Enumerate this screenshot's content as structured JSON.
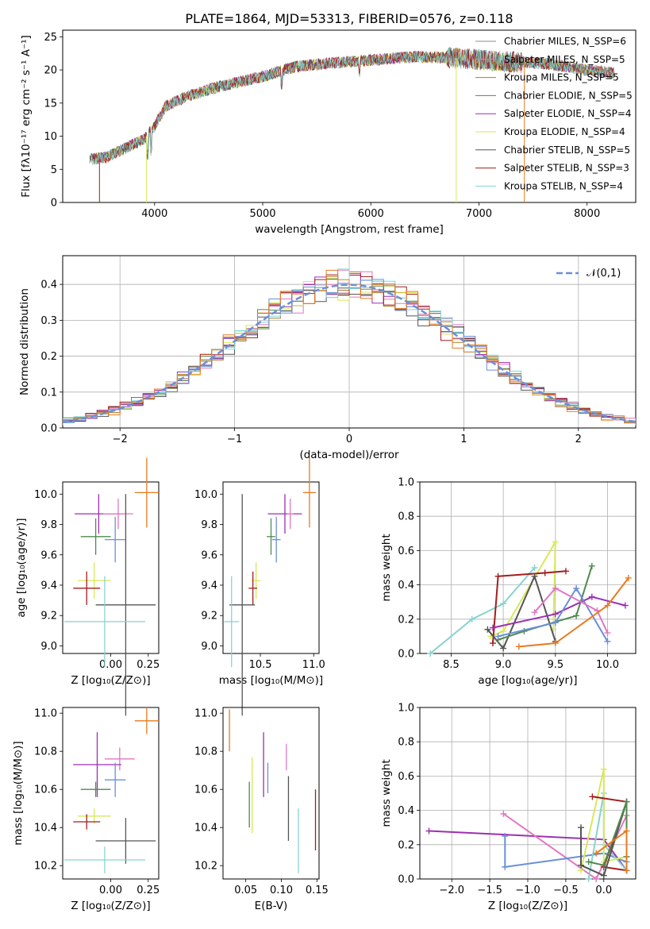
{
  "figure": {
    "title": "PLATE=1864, MJD=53313, FIBERID=0576, z=0.118"
  },
  "colors": {
    "chabrier_miles": "#8c8c8c",
    "salpeter_miles": "#e377c2",
    "kroupa_miles": "#b5782a",
    "chabrier_elodie": "#4f8a4f",
    "salpeter_elodie": "#9d2fb0",
    "kroupa_elodie": "#d7e85b",
    "chabrier_stelib": "#555555",
    "salpeter_stelib": "#a31d1d",
    "kroupa_stelib": "#7fd6d6",
    "orange": "#e87a1e",
    "blue": "#6a8fd8",
    "teal": "#86d3cf"
  },
  "chart_data": [
    {
      "id": "spectrum",
      "type": "line",
      "xlabel": "wavelength [Angstrom, rest frame]",
      "ylabel": "Flux [fλ10⁻¹⁷ erg cm⁻² s⁻¹ A⁻¹]",
      "xlim": [
        3150,
        8450
      ],
      "ylim": [
        0,
        26
      ],
      "xticks": [
        4000,
        5000,
        6000,
        7000,
        8000
      ],
      "yticks": [
        0,
        5,
        10,
        15,
        20,
        25
      ],
      "continuum_x": [
        3400,
        3550,
        3700,
        3900,
        4000,
        4100,
        4300,
        4600,
        5000,
        5300,
        5600,
        6000,
        6400,
        6800,
        7200,
        7600,
        8000,
        8250
      ],
      "continuum_y": [
        6.5,
        6.8,
        8.0,
        9.5,
        11.5,
        14.5,
        16.0,
        17.5,
        19.0,
        20.5,
        21.0,
        21.5,
        22.0,
        21.8,
        21.3,
        21.0,
        20.0,
        19.5
      ],
      "legend": [
        {
          "label": "Chabrier MILES, N_SSP=6",
          "color": "#8c8c8c"
        },
        {
          "label": "Salpeter MILES, N_SSP=5",
          "color": "#e377c2"
        },
        {
          "label": "Kroupa MILES, N_SSP=5",
          "color": "#b5782a"
        },
        {
          "label": "Chabrier ELODIE, N_SSP=5",
          "color": "#4f8a4f"
        },
        {
          "label": "Salpeter ELODIE, N_SSP=4",
          "color": "#9d2fb0"
        },
        {
          "label": "Kroupa ELODIE, N_SSP=4",
          "color": "#d7e85b"
        },
        {
          "label": "Chabrier STELIB, N_SSP=5",
          "color": "#555555"
        },
        {
          "label": "Salpeter STELIB, N_SSP=3",
          "color": "#a31d1d"
        },
        {
          "label": "Kroupa STELIB, N_SSP=4",
          "color": "#7fd6d6"
        }
      ],
      "legend_position": "right",
      "grid": false
    },
    {
      "id": "residuals",
      "type": "line",
      "xlabel": "(data-model)/error",
      "ylabel": "Normed distribution",
      "xlim": [
        -2.5,
        2.5
      ],
      "ylim": [
        0,
        0.48
      ],
      "xticks": [
        -2,
        -1,
        0,
        1,
        2
      ],
      "yticks": [
        0.0,
        0.1,
        0.2,
        0.3,
        0.4
      ],
      "legend": [
        {
          "label": "𝒩(0,1)",
          "color": "#6a8fd8",
          "style": "dashed"
        }
      ],
      "legend_position": "top-right",
      "grid": true,
      "hist_colors": [
        "#b5782a",
        "#e377c2",
        "#4f8a4f",
        "#9d2fb0",
        "#d7e85b",
        "#555555",
        "#a31d1d",
        "#7fd6d6",
        "#6a8fd8",
        "#e87a1e"
      ]
    },
    {
      "id": "age_vs_Z",
      "type": "scatter",
      "xlabel": "Z [log₁₀(Z/Z⊙)]",
      "ylabel": "age  [log₁₀(age/yr)]",
      "xlim": [
        -0.32,
        0.32
      ],
      "ylim": [
        8.95,
        10.08
      ],
      "xticks": [
        0.0,
        0.25
      ],
      "xticklabels": [
        "0.00",
        "0.25"
      ],
      "yticks": [
        9.0,
        9.2,
        9.4,
        9.6,
        9.8,
        10.0
      ],
      "yticklabels": [
        "9.0",
        "9.2",
        "9.4",
        "9.6",
        "9.8",
        "10.0"
      ],
      "points": [
        {
          "x": 0.24,
          "y": 10.01,
          "xerr": 0.08,
          "yerr": 0.23,
          "color": "#e87a1e"
        },
        {
          "x": -0.08,
          "y": 9.87,
          "xerr": 0.16,
          "yerr": 0.13,
          "color": "#9d2fb0"
        },
        {
          "x": 0.05,
          "y": 9.87,
          "xerr": 0.1,
          "yerr": 0.1,
          "color": "#e377c2"
        },
        {
          "x": -0.1,
          "y": 9.72,
          "xerr": 0.1,
          "yerr": 0.12,
          "color": "#4f8a4f"
        },
        {
          "x": 0.03,
          "y": 9.7,
          "xerr": 0.07,
          "yerr": 0.15,
          "color": "#6a8fd8"
        },
        {
          "x": -0.11,
          "y": 9.43,
          "xerr": 0.11,
          "yerr": 0.12,
          "color": "#d7e85b"
        },
        {
          "x": -0.16,
          "y": 9.38,
          "xerr": 0.09,
          "yerr": 0.11,
          "color": "#a31d1d"
        },
        {
          "x": 0.1,
          "y": 9.27,
          "xerr": 0.2,
          "yerr": 0.73,
          "color": "#555555"
        },
        {
          "x": -0.04,
          "y": 9.16,
          "xerr": 0.27,
          "yerr": 0.3,
          "color": "#86d3cf"
        }
      ]
    },
    {
      "id": "age_vs_mass",
      "type": "scatter",
      "xlabel": "mass [log₁₀(M/M⊙)]",
      "ylabel": "",
      "xlim": [
        10.15,
        11.05
      ],
      "ylim": [
        8.95,
        10.08
      ],
      "xticks": [
        10.5,
        11.0
      ],
      "xticklabels": [
        "10.5",
        "11.0"
      ],
      "yticks": [
        9.0,
        9.2,
        9.4,
        9.6,
        9.8,
        10.0
      ],
      "yticklabels": [
        "9.0",
        "9.2",
        "9.4",
        "9.6",
        "9.8",
        "10.0"
      ],
      "points": [
        {
          "x": 10.96,
          "y": 10.01,
          "xerr": 0.06,
          "yerr": 0.23,
          "color": "#e87a1e"
        },
        {
          "x": 10.73,
          "y": 9.87,
          "xerr": 0.16,
          "yerr": 0.13,
          "color": "#9d2fb0"
        },
        {
          "x": 10.78,
          "y": 9.87,
          "xerr": 0.03,
          "yerr": 0.1,
          "color": "#e377c2"
        },
        {
          "x": 10.6,
          "y": 9.72,
          "xerr": 0.04,
          "yerr": 0.12,
          "color": "#4f8a4f"
        },
        {
          "x": 10.65,
          "y": 9.7,
          "xerr": 0.04,
          "yerr": 0.15,
          "color": "#6a8fd8"
        },
        {
          "x": 10.46,
          "y": 9.43,
          "xerr": 0.04,
          "yerr": 0.12,
          "color": "#d7e85b"
        },
        {
          "x": 10.43,
          "y": 9.38,
          "xerr": 0.04,
          "yerr": 0.11,
          "color": "#a31d1d"
        },
        {
          "x": 10.33,
          "y": 9.27,
          "xerr": 0.12,
          "yerr": 0.73,
          "color": "#555555"
        },
        {
          "x": 10.23,
          "y": 9.16,
          "xerr": 0.07,
          "yerr": 0.3,
          "color": "#86d3cf"
        }
      ]
    },
    {
      "id": "massweight_vs_age",
      "type": "line",
      "xlabel": "age  [log₁₀(age/yr)]",
      "ylabel": "mass weight",
      "xlim": [
        8.2,
        10.27
      ],
      "ylim": [
        0,
        1.0
      ],
      "xticks": [
        8.5,
        9.0,
        9.5,
        10.0
      ],
      "xticklabels": [
        "8.5",
        "9.0",
        "9.5",
        "10.0"
      ],
      "yticks": [
        0.0,
        0.2,
        0.4,
        0.6,
        0.8,
        1.0
      ],
      "yticklabels": [
        "0.0",
        "0.2",
        "0.4",
        "0.6",
        "0.8",
        "1.0"
      ],
      "grid": true,
      "series": [
        {
          "color": "#86d3cf",
          "x": [
            8.3,
            8.7,
            9.0,
            9.3
          ],
          "y": [
            0.0,
            0.2,
            0.29,
            0.5
          ]
        },
        {
          "color": "#d7e85b",
          "x": [
            8.88,
            9.0,
            9.5,
            9.48
          ],
          "y": [
            0.1,
            0.13,
            0.65,
            0.14
          ]
        },
        {
          "color": "#a31d1d",
          "x": [
            8.9,
            8.95,
            9.4,
            9.6
          ],
          "y": [
            0.06,
            0.45,
            0.47,
            0.48
          ]
        },
        {
          "color": "#555555",
          "x": [
            8.85,
            9.0,
            9.3,
            9.5
          ],
          "y": [
            0.14,
            0.03,
            0.45,
            0.07
          ]
        },
        {
          "color": "#4f8a4f",
          "x": [
            8.95,
            9.2,
            9.7,
            9.85
          ],
          "y": [
            0.08,
            0.13,
            0.22,
            0.51
          ]
        },
        {
          "color": "#9d2fb0",
          "x": [
            8.9,
            9.5,
            9.85,
            10.17
          ],
          "y": [
            0.15,
            0.23,
            0.33,
            0.28
          ]
        },
        {
          "color": "#6a8fd8",
          "x": [
            8.95,
            9.5,
            9.7,
            10.0
          ],
          "y": [
            0.1,
            0.18,
            0.38,
            0.07
          ]
        },
        {
          "color": "#e377c2",
          "x": [
            9.3,
            9.5,
            9.9,
            10.0
          ],
          "y": [
            0.24,
            0.38,
            0.25,
            0.12
          ]
        },
        {
          "color": "#e87a1e",
          "x": [
            9.15,
            9.5,
            10.0,
            10.2
          ],
          "y": [
            0.04,
            0.06,
            0.28,
            0.44
          ]
        }
      ]
    },
    {
      "id": "mass_vs_Z",
      "type": "scatter",
      "xlabel": "Z [log₁₀(Z/Z⊙)]",
      "ylabel": "mass [log₁₀(M/M⊙)]",
      "xlim": [
        -0.32,
        0.32
      ],
      "ylim": [
        10.13,
        11.03
      ],
      "xticks": [
        0.0,
        0.25
      ],
      "xticklabels": [
        "0.00",
        "0.25"
      ],
      "yticks": [
        10.2,
        10.4,
        10.6,
        10.8,
        11.0
      ],
      "yticklabels": [
        "10.2",
        "10.4",
        "10.6",
        "10.8",
        "11.0"
      ],
      "points": [
        {
          "x": 0.24,
          "y": 10.96,
          "xerr": 0.08,
          "yerr": 0.07,
          "color": "#e87a1e"
        },
        {
          "x": 0.06,
          "y": 10.76,
          "xerr": 0.1,
          "yerr": 0.06,
          "color": "#e377c2"
        },
        {
          "x": -0.09,
          "y": 10.73,
          "xerr": 0.16,
          "yerr": 0.17,
          "color": "#9d2fb0"
        },
        {
          "x": 0.03,
          "y": 10.65,
          "xerr": 0.07,
          "yerr": 0.09,
          "color": "#6a8fd8"
        },
        {
          "x": -0.1,
          "y": 10.6,
          "xerr": 0.1,
          "yerr": 0.04,
          "color": "#4f8a4f"
        },
        {
          "x": -0.11,
          "y": 10.46,
          "xerr": 0.11,
          "yerr": 0.04,
          "color": "#d7e85b"
        },
        {
          "x": -0.16,
          "y": 10.43,
          "xerr": 0.09,
          "yerr": 0.04,
          "color": "#a31d1d"
        },
        {
          "x": 0.1,
          "y": 10.33,
          "xerr": 0.2,
          "yerr": 0.12,
          "color": "#555555"
        },
        {
          "x": -0.04,
          "y": 10.23,
          "xerr": 0.27,
          "yerr": 0.07,
          "color": "#86d3cf"
        }
      ]
    },
    {
      "id": "mass_vs_EBV",
      "type": "scatter",
      "xlabel": "E(B-V)",
      "ylabel": "",
      "xlim": [
        0.018,
        0.153
      ],
      "ylim": [
        10.13,
        11.03
      ],
      "xticks": [
        0.05,
        0.1,
        0.15
      ],
      "xticklabels": [
        "0.05",
        "0.10",
        "0.15"
      ],
      "yticks": [
        10.2,
        10.4,
        10.6,
        10.8,
        11.0
      ],
      "yticklabels": [
        "10.2",
        "10.4",
        "10.6",
        "10.8",
        "11.0"
      ],
      "points": [
        {
          "x": 0.027,
          "y": 10.91,
          "xerr": 0,
          "yerr": 0.11,
          "color": "#e87a1e"
        },
        {
          "x": 0.055,
          "y": 10.52,
          "xerr": 0,
          "yerr": 0.12,
          "color": "#4f8a4f"
        },
        {
          "x": 0.059,
          "y": 10.57,
          "xerr": 0,
          "yerr": 0.2,
          "color": "#d7e85b"
        },
        {
          "x": 0.075,
          "y": 10.73,
          "xerr": 0,
          "yerr": 0.17,
          "color": "#9d2fb0"
        },
        {
          "x": 0.081,
          "y": 10.66,
          "xerr": 0,
          "yerr": 0.08,
          "color": "#6a8fd8"
        },
        {
          "x": 0.107,
          "y": 10.77,
          "xerr": 0,
          "yerr": 0.07,
          "color": "#e377c2"
        },
        {
          "x": 0.11,
          "y": 10.5,
          "xerr": 0,
          "yerr": 0.17,
          "color": "#555555"
        },
        {
          "x": 0.124,
          "y": 10.33,
          "xerr": 0,
          "yerr": 0.17,
          "color": "#86d3cf"
        },
        {
          "x": 0.148,
          "y": 10.44,
          "xerr": 0,
          "yerr": 0.16,
          "color": "#a31d1d"
        }
      ]
    },
    {
      "id": "massweight_vs_Z",
      "type": "line",
      "xlabel": "Z [log₁₀(Z/Z⊙)]",
      "ylabel": "mass weight",
      "xlim": [
        -2.42,
        0.42
      ],
      "ylim": [
        0,
        1.0
      ],
      "xticks": [
        -2.0,
        -1.5,
        -1.0,
        -0.5,
        0.0
      ],
      "xticklabels": [
        "−2.0",
        "−1.5",
        "−1.0",
        "−0.5",
        "0.0"
      ],
      "yticks": [
        0.0,
        0.2,
        0.4,
        0.6,
        0.8,
        1.0
      ],
      "yticklabels": [
        "0.0",
        "0.2",
        "0.4",
        "0.6",
        "0.8",
        "1.0"
      ],
      "grid": true,
      "series": [
        {
          "color": "#9d2fb0",
          "x": [
            -2.3,
            0.0,
            0.3
          ],
          "y": [
            0.28,
            0.23,
            0.05
          ]
        },
        {
          "color": "#e377c2",
          "x": [
            -1.32,
            -0.1,
            0.3
          ],
          "y": [
            0.38,
            0.0,
            0.37
          ]
        },
        {
          "color": "#6a8fd8",
          "x": [
            -1.3,
            -1.3,
            0.0,
            0.3
          ],
          "y": [
            0.25,
            0.07,
            0.15,
            0.1
          ]
        },
        {
          "color": "#86d3cf",
          "x": [
            -0.2,
            0.0,
            0.0,
            0.3
          ],
          "y": [
            0.0,
            0.5,
            0.2,
            0.05
          ]
        },
        {
          "color": "#d7e85b",
          "x": [
            -0.3,
            0.0,
            0.0,
            0.3
          ],
          "y": [
            0.05,
            0.64,
            0.1,
            0.13
          ]
        },
        {
          "color": "#a31d1d",
          "x": [
            -0.15,
            0.3,
            0.0,
            0.3
          ],
          "y": [
            0.48,
            0.45,
            0.07,
            0.05
          ]
        },
        {
          "color": "#555555",
          "x": [
            -0.3,
            -0.3,
            0.0,
            0.3
          ],
          "y": [
            0.3,
            0.08,
            0.02,
            0.45
          ]
        },
        {
          "color": "#4f8a4f",
          "x": [
            -0.2,
            0.0,
            0.3,
            0.3
          ],
          "y": [
            0.1,
            0.08,
            0.45,
            0.13
          ]
        },
        {
          "color": "#e87a1e",
          "x": [
            -0.1,
            0.3,
            0.3
          ],
          "y": [
            0.15,
            0.28,
            0.05
          ]
        }
      ]
    }
  ]
}
